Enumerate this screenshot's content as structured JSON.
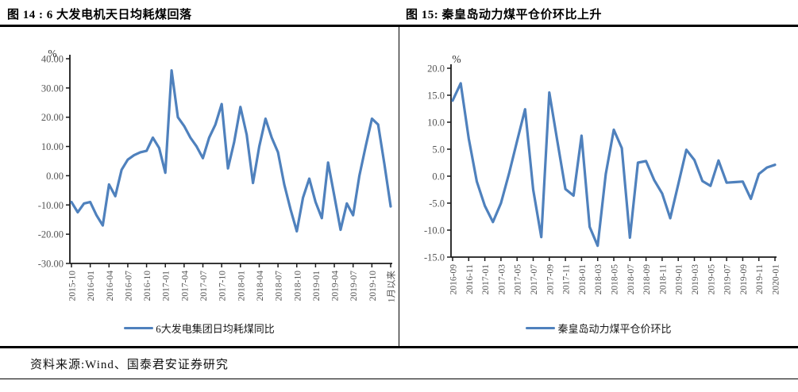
{
  "footer": {
    "source": "资料来源:Wind、国泰君安证券研究"
  },
  "chart_data": [
    {
      "type": "line",
      "title": "图 14 : 6 大发电机天日均耗煤回落",
      "legend": "6大发电集团日均耗煤同比",
      "ylabel": "%",
      "color": "#4F81BD",
      "grid": false,
      "legend_position": "bottom",
      "ylim": [
        -30,
        40
      ],
      "ytick_labels": [
        "40.00",
        "30.00",
        "20.00",
        "10.00",
        "0.00",
        "-10.00",
        "-20.00",
        "-30.00"
      ],
      "xtick_every": 3,
      "xtick_labels": [
        "2015-10",
        "2016-01",
        "2016-04",
        "2016-07",
        "2016-10",
        "2017-01",
        "2017-04",
        "2017-07",
        "2017-10",
        "2018-01",
        "2018-04",
        "2018-07",
        "2018-10",
        "2019-01",
        "2019-04",
        "2019-07",
        "2019-10",
        "1月以来"
      ],
      "x": [
        "2015-10",
        "2015-11",
        "2015-12",
        "2016-01",
        "2016-02",
        "2016-03",
        "2016-04",
        "2016-05",
        "2016-06",
        "2016-07",
        "2016-08",
        "2016-09",
        "2016-10",
        "2016-11",
        "2016-12",
        "2017-01",
        "2017-02",
        "2017-03",
        "2017-04",
        "2017-05",
        "2017-06",
        "2017-07",
        "2017-08",
        "2017-09",
        "2017-10",
        "2017-11",
        "2017-12",
        "2018-01",
        "2018-02",
        "2018-03",
        "2018-04",
        "2018-05",
        "2018-06",
        "2018-07",
        "2018-08",
        "2018-09",
        "2018-10",
        "2018-11",
        "2018-12",
        "2019-01",
        "2019-02",
        "2019-03",
        "2019-04",
        "2019-05",
        "2019-06",
        "2019-07",
        "2019-08",
        "2019-09",
        "2019-10",
        "2019-11",
        "2019-12",
        "1月以来"
      ],
      "values": [
        -9,
        -12.5,
        -9.5,
        -9,
        -13.5,
        -17,
        -3,
        -7,
        2,
        5.5,
        7,
        8,
        8.5,
        13,
        9.5,
        1,
        36,
        20,
        17,
        13,
        10,
        6,
        13,
        17.5,
        24.5,
        2.5,
        11.5,
        23.5,
        14,
        -2.5,
        10,
        19.5,
        13,
        8,
        -3,
        -11.5,
        -19,
        -7.5,
        -1,
        -9,
        -14.5,
        4.5,
        -7,
        -18.5,
        -9.5,
        -13.5,
        0,
        10,
        19.5,
        17.5,
        4,
        -10.5
      ]
    },
    {
      "type": "line",
      "title": "图 15: 秦皇岛动力煤平仓价环比上升",
      "legend": "秦皇岛动力煤平仓价环比",
      "ylabel": "%",
      "color": "#4F81BD",
      "grid": false,
      "legend_position": "bottom",
      "ylim": [
        -15,
        20
      ],
      "ytick_labels": [
        "20.0",
        "15.0",
        "10.0",
        "5.0",
        "0.0",
        "-5.0",
        "-10.0",
        "-15.0"
      ],
      "xtick_every": 2,
      "xtick_labels": [
        "2016-09",
        "2016-11",
        "2017-01",
        "2017-03",
        "2017-05",
        "2017-07",
        "2017-09",
        "2017-11",
        "2018-01",
        "2018-03",
        "2018-05",
        "2018-07",
        "2018-09",
        "2018-11",
        "2019-01",
        "2019-03",
        "2019-05",
        "2019-07",
        "2019-09",
        "2019-11",
        "2020-01"
      ],
      "x": [
        "2016-09",
        "2016-10",
        "2016-11",
        "2016-12",
        "2017-01",
        "2017-02",
        "2017-03",
        "2017-04",
        "2017-05",
        "2017-06",
        "2017-07",
        "2017-08",
        "2017-09",
        "2017-10",
        "2017-11",
        "2017-12",
        "2018-01",
        "2018-02",
        "2018-03",
        "2018-04",
        "2018-05",
        "2018-06",
        "2018-07",
        "2018-08",
        "2018-09",
        "2018-10",
        "2018-11",
        "2018-12",
        "2019-01",
        "2019-02",
        "2019-03",
        "2019-04",
        "2019-05",
        "2019-06",
        "2019-07",
        "2019-08",
        "2019-09",
        "2019-10",
        "2019-11",
        "2019-12",
        "2020-01"
      ],
      "values": [
        14,
        17.2,
        7,
        -1,
        -5.5,
        -8.5,
        -5,
        0.5,
        6.5,
        12.4,
        -2.5,
        -11.3,
        15.5,
        6.5,
        -2.4,
        -3.6,
        7.5,
        -9.4,
        -12.9,
        0.4,
        8.6,
        5.2,
        -11.4,
        2.5,
        2.8,
        -0.7,
        -3.2,
        -7.8,
        -1.5,
        4.9,
        3,
        -0.9,
        -1.8,
        2.9,
        -1.2,
        -1.1,
        -1,
        -4.2,
        0.4,
        1.6,
        2.1
      ]
    }
  ]
}
